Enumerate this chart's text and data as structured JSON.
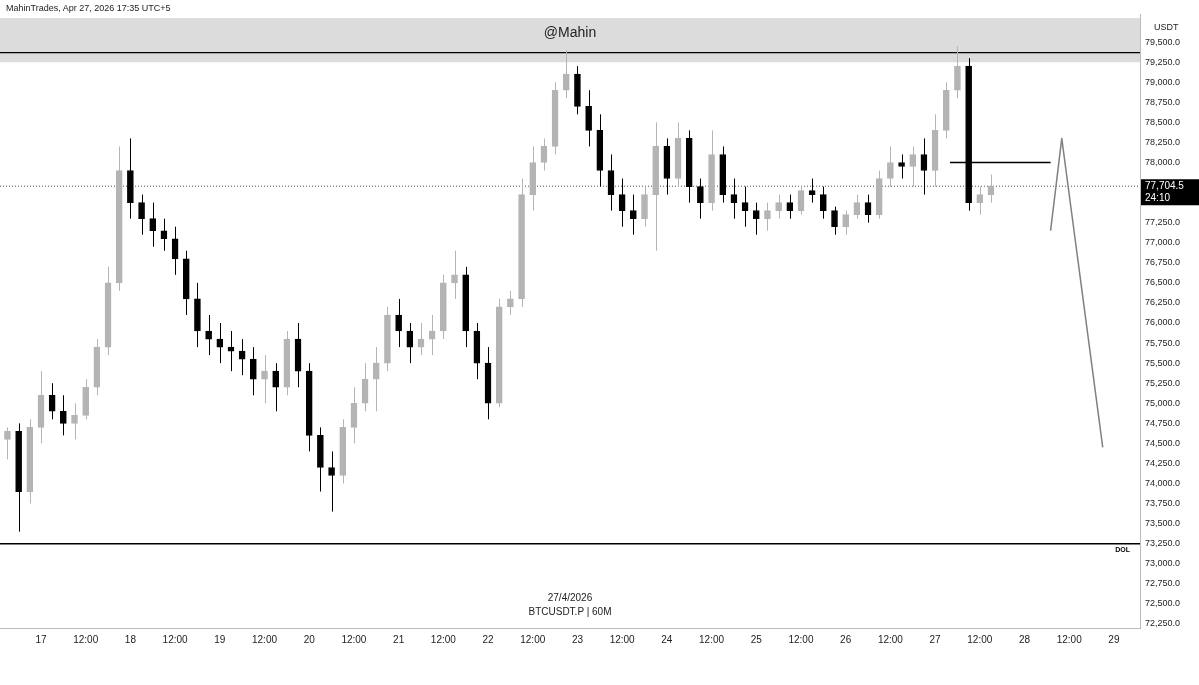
{
  "chart_data": {
    "type": "candlestick",
    "ylabel": "USDT",
    "annotations": [
      "MahinTrades, Apr 27, 2026 17:35 UTC+5",
      "27/4/2026",
      "BTCUSDT.P | 60M",
      "24:10"
    ],
    "xlim": [
      "2026-04-16T13:00",
      "2026-04-29T07:00"
    ],
    "xticks": [
      {
        "value": "2026-04-17T00:00",
        "label": "17"
      },
      {
        "value": "2026-04-17T12:00",
        "label": "12:00"
      },
      {
        "value": "2026-04-18T00:00",
        "label": "18"
      },
      {
        "value": "2026-04-18T12:00",
        "label": "12:00"
      },
      {
        "value": "2026-04-19T00:00",
        "label": "19"
      },
      {
        "value": "2026-04-19T12:00",
        "label": "12:00"
      },
      {
        "value": "2026-04-20T00:00",
        "label": "20"
      },
      {
        "value": "2026-04-20T12:00",
        "label": "12:00"
      },
      {
        "value": "2026-04-21T00:00",
        "label": "21"
      },
      {
        "value": "2026-04-21T12:00",
        "label": "12:00"
      },
      {
        "value": "2026-04-22T00:00",
        "label": "22"
      },
      {
        "value": "2026-04-22T12:00",
        "label": "12:00"
      },
      {
        "value": "2026-04-23T00:00",
        "label": "23"
      },
      {
        "value": "2026-04-23T12:00",
        "label": "12:00"
      },
      {
        "value": "2026-04-24T00:00",
        "label": "24"
      },
      {
        "value": "2026-04-24T12:00",
        "label": "12:00"
      },
      {
        "value": "2026-04-25T00:00",
        "label": "25"
      },
      {
        "value": "2026-04-25T12:00",
        "label": "12:00"
      },
      {
        "value": "2026-04-26T00:00",
        "label": "26"
      },
      {
        "value": "2026-04-26T12:00",
        "label": "12:00"
      },
      {
        "value": "2026-04-27T00:00",
        "label": "27"
      },
      {
        "value": "2026-04-27T12:00",
        "label": "12:00"
      },
      {
        "value": "2026-04-28T00:00",
        "label": "28"
      },
      {
        "value": "2026-04-28T12:00",
        "label": "12:00"
      },
      {
        "value": "2026-04-29T00:00",
        "label": "29"
      }
    ],
    "ylim": [
      72200,
      79850
    ],
    "yticks": [
      {
        "value": 72250,
        "label": "72,250.0"
      },
      {
        "value": 72500,
        "label": "72,500.0"
      },
      {
        "value": 72750,
        "label": "72,750.0"
      },
      {
        "value": 73000,
        "label": "73,000.0"
      },
      {
        "value": 73250,
        "label": "73,250.0"
      },
      {
        "value": 73500,
        "label": "73,500.0"
      },
      {
        "value": 73750,
        "label": "73,750.0"
      },
      {
        "value": 74000,
        "label": "74,000.0"
      },
      {
        "value": 74250,
        "label": "74,250.0"
      },
      {
        "value": 74500,
        "label": "74,500.0"
      },
      {
        "value": 74750,
        "label": "74,750.0"
      },
      {
        "value": 75000,
        "label": "75,000.0"
      },
      {
        "value": 75250,
        "label": "75,250.0"
      },
      {
        "value": 75500,
        "label": "75,500.0"
      },
      {
        "value": 75750,
        "label": "75,750.0"
      },
      {
        "value": 76000,
        "label": "76,000.0"
      },
      {
        "value": 76250,
        "label": "76,250.0"
      },
      {
        "value": 76500,
        "label": "76,500.0"
      },
      {
        "value": 76750,
        "label": "76,750.0"
      },
      {
        "value": 77000,
        "label": "77,000.0"
      },
      {
        "value": 77250,
        "label": "77,250.0"
      },
      {
        "value": 78000,
        "label": "78,000.0"
      },
      {
        "value": 78250,
        "label": "78,250.0"
      },
      {
        "value": 78500,
        "label": "78,500.0"
      },
      {
        "value": 78750,
        "label": "78,750.0"
      },
      {
        "value": 79000,
        "label": "79,000.0"
      },
      {
        "value": 79250,
        "label": "79,250.0"
      },
      {
        "value": 79500,
        "label": "79,500.0"
      }
    ],
    "bands": [
      {
        "axis": "y",
        "from": 79250,
        "to": 79800,
        "label": "@Mahin",
        "color": "#dcdcdc"
      }
    ],
    "ref_lines": [
      {
        "axis": "y",
        "value": 79370,
        "label": null,
        "color": "#000000",
        "line_style": "solid"
      },
      {
        "axis": "y",
        "value": 73250,
        "label": "DOL",
        "color": "#000000",
        "line_style": "solid"
      },
      {
        "axis": "y",
        "value": 77704.5,
        "label": "77,704.5",
        "color": "#000000",
        "line_style": "dotted"
      }
    ],
    "series": [
      {
        "type": "candlestick",
        "colors": [
          "#b4b4b4",
          "#000000",
          "#b4b4b4",
          "#b4b4b4",
          "#000000",
          "#000000",
          "#b4b4b4",
          "#b4b4b4",
          "#b4b4b4",
          "#b4b4b4",
          "#b4b4b4",
          "#000000",
          "#000000",
          "#000000",
          "#000000",
          "#000000",
          "#000000",
          "#000000",
          "#000000",
          "#000000",
          "#000000",
          "#000000",
          "#000000",
          "#b4b4b4",
          "#000000",
          "#b4b4b4",
          "#000000",
          "#000000",
          "#000000",
          "#000000",
          "#b4b4b4",
          "#b4b4b4",
          "#b4b4b4",
          "#b4b4b4",
          "#b4b4b4",
          "#000000",
          "#000000",
          "#b4b4b4",
          "#b4b4b4",
          "#b4b4b4",
          "#b4b4b4",
          "#000000",
          "#000000",
          "#000000",
          "#b4b4b4",
          "#b4b4b4",
          "#b4b4b4",
          "#b4b4b4",
          "#b4b4b4",
          "#b4b4b4",
          "#b4b4b4",
          "#000000",
          "#000000",
          "#000000",
          "#000000",
          "#000000",
          "#000000",
          "#b4b4b4",
          "#b4b4b4",
          "#000000",
          "#b4b4b4",
          "#000000",
          "#000000",
          "#b4b4b4",
          "#000000",
          "#000000",
          "#000000",
          "#000000",
          "#b4b4b4",
          "#b4b4b4",
          "#000000",
          "#b4b4b4",
          "#000000",
          "#000000",
          "#000000",
          "#b4b4b4",
          "#b4b4b4",
          "#000000",
          "#b4b4b4",
          "#b4b4b4",
          "#000000",
          "#b4b4b4",
          "#000000",
          "#b4b4b4",
          "#b4b4b4",
          "#b4b4b4",
          "#000000",
          "#b4b4b4",
          "#b4b4b4"
        ],
        "x": [
          "2026-04-16T15:00",
          "2026-04-16T18:00",
          "2026-04-16T21:00",
          "2026-04-17T00:00",
          "2026-04-17T03:00",
          "2026-04-17T06:00",
          "2026-04-17T09:00",
          "2026-04-17T12:00",
          "2026-04-17T15:00",
          "2026-04-17T18:00",
          "2026-04-17T21:00",
          "2026-04-18T00:00",
          "2026-04-18T03:00",
          "2026-04-18T06:00",
          "2026-04-18T09:00",
          "2026-04-18T12:00",
          "2026-04-18T15:00",
          "2026-04-18T18:00",
          "2026-04-18T21:00",
          "2026-04-19T00:00",
          "2026-04-19T03:00",
          "2026-04-19T06:00",
          "2026-04-19T09:00",
          "2026-04-19T12:00",
          "2026-04-19T15:00",
          "2026-04-19T18:00",
          "2026-04-19T21:00",
          "2026-04-20T00:00",
          "2026-04-20T03:00",
          "2026-04-20T06:00",
          "2026-04-20T09:00",
          "2026-04-20T12:00",
          "2026-04-20T15:00",
          "2026-04-20T18:00",
          "2026-04-20T21:00",
          "2026-04-21T00:00",
          "2026-04-21T03:00",
          "2026-04-21T06:00",
          "2026-04-21T09:00",
          "2026-04-21T12:00",
          "2026-04-21T15:00",
          "2026-04-21T18:00",
          "2026-04-21T21:00",
          "2026-04-22T00:00",
          "2026-04-22T03:00",
          "2026-04-22T06:00",
          "2026-04-22T09:00",
          "2026-04-22T12:00",
          "2026-04-22T15:00",
          "2026-04-22T18:00",
          "2026-04-22T21:00",
          "2026-04-23T00:00",
          "2026-04-23T03:00",
          "2026-04-23T06:00",
          "2026-04-23T09:00",
          "2026-04-23T12:00",
          "2026-04-23T15:00",
          "2026-04-23T18:00",
          "2026-04-23T21:00",
          "2026-04-24T00:00",
          "2026-04-24T03:00",
          "2026-04-24T06:00",
          "2026-04-24T09:00",
          "2026-04-24T12:00",
          "2026-04-24T15:00",
          "2026-04-24T18:00",
          "2026-04-24T21:00",
          "2026-04-25T00:00",
          "2026-04-25T03:00",
          "2026-04-25T06:00",
          "2026-04-25T09:00",
          "2026-04-25T12:00",
          "2026-04-25T15:00",
          "2026-04-25T18:00",
          "2026-04-25T21:00",
          "2026-04-26T00:00",
          "2026-04-26T03:00",
          "2026-04-26T06:00",
          "2026-04-26T09:00",
          "2026-04-26T12:00",
          "2026-04-26T15:00",
          "2026-04-26T18:00",
          "2026-04-26T21:00",
          "2026-04-27T00:00",
          "2026-04-27T03:00",
          "2026-04-27T06:00",
          "2026-04-27T09:00",
          "2026-04-27T12:00",
          "2026-04-27T15:00"
        ],
        "ohlc": [
          [
            74550,
            74700,
            74300,
            74650
          ],
          [
            74650,
            74750,
            73400,
            73900
          ],
          [
            73900,
            74800,
            73750,
            74700
          ],
          [
            74700,
            75400,
            74500,
            75100
          ],
          [
            75100,
            75250,
            74800,
            74900
          ],
          [
            74900,
            75100,
            74600,
            74750
          ],
          [
            74750,
            75000,
            74550,
            74850
          ],
          [
            74850,
            75300,
            74800,
            75200
          ],
          [
            75200,
            75800,
            75100,
            75700
          ],
          [
            75700,
            76700,
            75600,
            76500
          ],
          [
            76500,
            78200,
            76400,
            77900
          ],
          [
            77900,
            78300,
            77300,
            77500
          ],
          [
            77500,
            77600,
            77100,
            77300
          ],
          [
            77300,
            77500,
            76950,
            77150
          ],
          [
            77150,
            77300,
            76900,
            77050
          ],
          [
            77050,
            77200,
            76600,
            76800
          ],
          [
            76800,
            76900,
            76100,
            76300
          ],
          [
            76300,
            76500,
            75700,
            75900
          ],
          [
            75900,
            76100,
            75600,
            75800
          ],
          [
            75800,
            76000,
            75500,
            75700
          ],
          [
            75700,
            75900,
            75400,
            75650
          ],
          [
            75650,
            75800,
            75350,
            75550
          ],
          [
            75550,
            75700,
            75100,
            75300
          ],
          [
            75300,
            75600,
            75000,
            75400
          ],
          [
            75400,
            75500,
            74900,
            75200
          ],
          [
            75200,
            75900,
            75100,
            75800
          ],
          [
            75800,
            76000,
            75200,
            75400
          ],
          [
            75400,
            75500,
            74400,
            74600
          ],
          [
            74600,
            74700,
            73900,
            74200
          ],
          [
            74200,
            74400,
            73650,
            74100
          ],
          [
            74100,
            74800,
            74000,
            74700
          ],
          [
            74700,
            75200,
            74500,
            75000
          ],
          [
            75000,
            75500,
            74900,
            75300
          ],
          [
            75300,
            75700,
            74900,
            75500
          ],
          [
            75500,
            76200,
            75400,
            76100
          ],
          [
            76100,
            76300,
            75700,
            75900
          ],
          [
            75900,
            76000,
            75500,
            75700
          ],
          [
            75700,
            76000,
            75600,
            75800
          ],
          [
            75800,
            76100,
            75600,
            75900
          ],
          [
            75900,
            76600,
            75800,
            76500
          ],
          [
            76500,
            76900,
            76300,
            76600
          ],
          [
            76600,
            76700,
            75700,
            75900
          ],
          [
            75900,
            76000,
            75300,
            75500
          ],
          [
            75500,
            75700,
            74800,
            75000
          ],
          [
            75000,
            76300,
            74950,
            76200
          ],
          [
            76200,
            76400,
            76100,
            76300
          ],
          [
            76300,
            77800,
            76200,
            77600
          ],
          [
            77600,
            78200,
            77400,
            78000
          ],
          [
            78000,
            78300,
            77900,
            78200
          ],
          [
            78200,
            79000,
            78100,
            78900
          ],
          [
            78900,
            79400,
            78800,
            79100
          ],
          [
            79100,
            79200,
            78600,
            78700
          ],
          [
            78700,
            78900,
            78200,
            78400
          ],
          [
            78400,
            78600,
            77700,
            77900
          ],
          [
            77900,
            78100,
            77400,
            77600
          ],
          [
            77600,
            77800,
            77200,
            77400
          ],
          [
            77400,
            77600,
            77100,
            77300
          ],
          [
            77300,
            77700,
            77200,
            77600
          ],
          [
            77600,
            78500,
            76900,
            78200
          ],
          [
            78200,
            78300,
            77600,
            77800
          ],
          [
            77800,
            78500,
            77700,
            78300
          ],
          [
            78300,
            78400,
            77500,
            77700
          ],
          [
            77700,
            77800,
            77300,
            77500
          ],
          [
            77500,
            78400,
            77400,
            78100
          ],
          [
            78100,
            78200,
            77500,
            77600
          ],
          [
            77600,
            77800,
            77300,
            77500
          ],
          [
            77500,
            77700,
            77200,
            77400
          ],
          [
            77400,
            77500,
            77100,
            77300
          ],
          [
            77300,
            77500,
            77150,
            77400
          ],
          [
            77400,
            77600,
            77300,
            77500
          ],
          [
            77500,
            77600,
            77300,
            77400
          ],
          [
            77400,
            77700,
            77350,
            77650
          ],
          [
            77650,
            77800,
            77500,
            77600
          ],
          [
            77600,
            77700,
            77300,
            77400
          ],
          [
            77400,
            77450,
            77100,
            77200
          ],
          [
            77200,
            77400,
            77100,
            77350
          ],
          [
            77350,
            77600,
            77300,
            77500
          ],
          [
            77500,
            77600,
            77250,
            77350
          ],
          [
            77350,
            77900,
            77300,
            77800
          ],
          [
            77800,
            78200,
            77700,
            78000
          ],
          [
            78000,
            78100,
            77800,
            77950
          ],
          [
            77950,
            78200,
            77700,
            78100
          ],
          [
            78100,
            78300,
            77600,
            77900
          ],
          [
            77900,
            78600,
            77700,
            78400
          ],
          [
            78400,
            79000,
            78300,
            78900
          ],
          [
            78900,
            79450,
            78800,
            79200
          ],
          [
            79200,
            79300,
            77400,
            77500
          ],
          [
            77500,
            77700,
            77350,
            77600
          ],
          [
            77600,
            77850,
            77500,
            77704.5
          ]
        ]
      },
      {
        "type": "line",
        "color": "#000000",
        "x": [
          "2026-04-27T04:00",
          "2026-04-28T07:00"
        ],
        "values": [
          78000,
          78000
        ]
      },
      {
        "type": "line",
        "color": "#808080",
        "x": [
          "2026-04-28T07:00",
          "2026-04-28T10:00",
          "2026-04-28T21:00"
        ],
        "values": [
          77150,
          78300,
          74450
        ]
      }
    ]
  }
}
